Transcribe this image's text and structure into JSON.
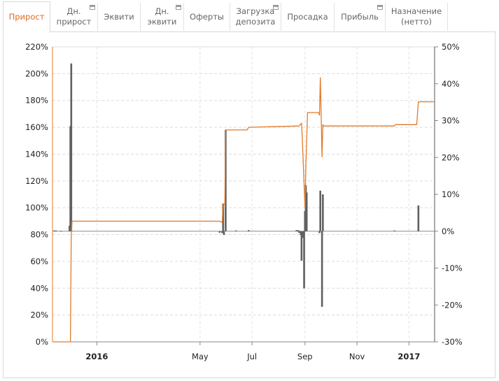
{
  "tabs": [
    {
      "label": "Прирост",
      "active": true
    },
    {
      "label": "Дн.\nприрост"
    },
    {
      "label": "Эквити"
    },
    {
      "label": "Дн.\nэквити"
    },
    {
      "label": "Оферты"
    },
    {
      "label": "Загрузка\nдепозита"
    },
    {
      "label": "Просадка"
    },
    {
      "label": "Прибыль"
    },
    {
      "label": "Назначение\n(нетто)"
    }
  ],
  "colors": {
    "line": "#e07b2a",
    "bars": "#606060",
    "active_tab": "#e06b1f"
  },
  "chart_data": {
    "type": "line+bar",
    "left_axis": {
      "min": 0,
      "max": 220,
      "step": 20,
      "unit": "%"
    },
    "right_axis": {
      "min": -30,
      "max": 50,
      "step": 10,
      "unit": "%"
    },
    "x_axis": {
      "start": "2015-11-10",
      "end": "2017-01-31",
      "ticks": [
        {
          "date": "2016-01-01",
          "label": "2016",
          "bold": true
        },
        {
          "date": "2016-05-01",
          "label": "May",
          "bold": false
        },
        {
          "date": "2016-07-01",
          "label": "Jul",
          "bold": false
        },
        {
          "date": "2016-09-01",
          "label": "Sep",
          "bold": false
        },
        {
          "date": "2016-11-01",
          "label": "Nov",
          "bold": false
        },
        {
          "date": "2017-01-01",
          "label": "2017",
          "bold": true
        }
      ]
    },
    "cumulative_growth_series": [
      [
        "2015-11-10",
        0
      ],
      [
        "2015-12-01",
        0
      ],
      [
        "2015-12-02",
        80
      ],
      [
        "2015-12-03",
        90
      ],
      [
        "2016-05-24",
        90
      ],
      [
        "2016-05-27",
        89
      ],
      [
        "2016-05-28",
        103
      ],
      [
        "2016-05-30",
        102
      ],
      [
        "2016-05-31",
        158
      ],
      [
        "2016-06-01",
        158
      ],
      [
        "2016-06-25",
        158
      ],
      [
        "2016-06-27",
        160
      ],
      [
        "2016-08-25",
        161
      ],
      [
        "2016-08-28",
        163
      ],
      [
        "2016-08-29",
        150
      ],
      [
        "2016-08-31",
        117
      ],
      [
        "2016-09-01",
        100
      ],
      [
        "2016-09-02",
        130
      ],
      [
        "2016-09-04",
        171
      ],
      [
        "2016-09-17",
        171
      ],
      [
        "2016-09-18",
        169
      ],
      [
        "2016-09-19",
        197
      ],
      [
        "2016-09-20",
        170
      ],
      [
        "2016-09-21",
        138
      ],
      [
        "2016-09-22",
        162
      ],
      [
        "2016-09-23",
        161
      ],
      [
        "2016-12-15",
        161
      ],
      [
        "2016-12-16",
        162
      ],
      [
        "2017-01-10",
        162
      ],
      [
        "2017-01-12",
        179
      ],
      [
        "2017-01-31",
        179
      ]
    ],
    "daily_growth_bars": [
      [
        "2015-11-12",
        0.2
      ],
      [
        "2015-11-14",
        0.2
      ],
      [
        "2015-11-20",
        0.1
      ],
      [
        "2015-11-30",
        1.5
      ],
      [
        "2015-12-01",
        28.5
      ],
      [
        "2015-12-02",
        45.5
      ],
      [
        "2016-05-24",
        -0.4
      ],
      [
        "2016-05-27",
        -0.5
      ],
      [
        "2016-05-28",
        7.5
      ],
      [
        "2016-05-29",
        -1.0
      ],
      [
        "2016-05-31",
        27.5
      ],
      [
        "2016-06-12",
        0.2
      ],
      [
        "2016-06-27",
        0.3
      ],
      [
        "2016-08-22",
        0.3
      ],
      [
        "2016-08-24",
        0.3
      ],
      [
        "2016-08-25",
        -0.4
      ],
      [
        "2016-08-27",
        -1.0
      ],
      [
        "2016-08-28",
        -8.0
      ],
      [
        "2016-08-30",
        -1.8
      ],
      [
        "2016-08-31",
        -15.5
      ],
      [
        "2016-09-01",
        5.5
      ],
      [
        "2016-09-02",
        12.5
      ],
      [
        "2016-09-03",
        10.5
      ],
      [
        "2016-09-18",
        -0.5
      ],
      [
        "2016-09-19",
        11.0
      ],
      [
        "2016-09-21",
        -20.5
      ],
      [
        "2016-09-22",
        10.0
      ],
      [
        "2016-12-15",
        0.2
      ],
      [
        "2017-01-12",
        7.0
      ]
    ]
  }
}
